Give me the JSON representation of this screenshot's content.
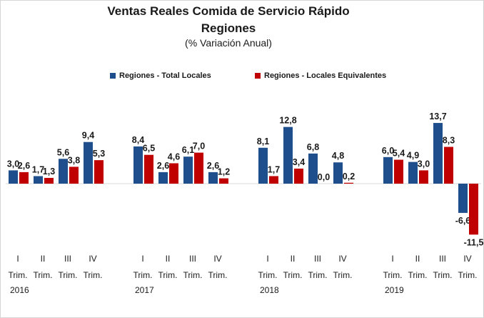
{
  "chart_data": {
    "type": "bar",
    "title": "Ventas Reales Comida de Servicio Rápido",
    "subtitle": "Regiones",
    "unit_note": "(% Variación Anual)",
    "legend_position": "top",
    "grid": false,
    "ylim": [
      -13,
      16
    ],
    "groups": [
      {
        "year": "2016",
        "quarters": [
          {
            "q": "I",
            "trim": "Trim."
          },
          {
            "q": "II",
            "trim": "Trim."
          },
          {
            "q": "III",
            "trim": "Trim."
          },
          {
            "q": "IV",
            "trim": "Trim."
          }
        ]
      },
      {
        "year": "2017",
        "quarters": [
          {
            "q": "I",
            "trim": "Trim."
          },
          {
            "q": "II",
            "trim": "Trim."
          },
          {
            "q": "III",
            "trim": "Trim."
          },
          {
            "q": "IV",
            "trim": "Trim."
          }
        ]
      },
      {
        "year": "2018",
        "quarters": [
          {
            "q": "I",
            "trim": "Trim."
          },
          {
            "q": "II",
            "trim": "Trim."
          },
          {
            "q": "III",
            "trim": "Trim."
          },
          {
            "q": "IV",
            "trim": "Trim."
          }
        ]
      },
      {
        "year": "2019",
        "quarters": [
          {
            "q": "I",
            "trim": "Trim."
          },
          {
            "q": "II",
            "trim": "Trim."
          },
          {
            "q": "III",
            "trim": "Trim."
          },
          {
            "q": "IV",
            "trim": "Trim."
          }
        ]
      }
    ],
    "series": [
      {
        "name": "Regiones - Total Locales",
        "color": "#1f4e8c",
        "values": [
          3.0,
          1.7,
          5.6,
          9.4,
          8.4,
          2.6,
          6.1,
          2.6,
          8.1,
          12.8,
          6.8,
          4.8,
          6.0,
          4.9,
          13.7,
          -6.6
        ],
        "labels": [
          "3,0",
          "1,7",
          "5,6",
          "9,4",
          "8,4",
          "2,6",
          "6,1",
          "2,6",
          "8,1",
          "12,8",
          "6,8",
          "4,8",
          "6,0",
          "4,9",
          "13,7",
          "-6,6"
        ]
      },
      {
        "name": "Regiones - Locales Equivalentes",
        "color": "#c00000",
        "values": [
          2.6,
          1.3,
          3.8,
          5.3,
          6.5,
          4.6,
          7.0,
          1.2,
          1.7,
          3.4,
          0.0,
          0.2,
          5.4,
          3.0,
          8.3,
          -11.5
        ],
        "labels": [
          "2,6",
          "1,3",
          "3,8",
          "5,3",
          "6,5",
          "4,6",
          "7,0",
          "1,2",
          "1,7",
          "3,4",
          "0,0",
          "0,2",
          "5,4",
          "3,0",
          "8,3",
          "-11,5"
        ]
      }
    ]
  }
}
